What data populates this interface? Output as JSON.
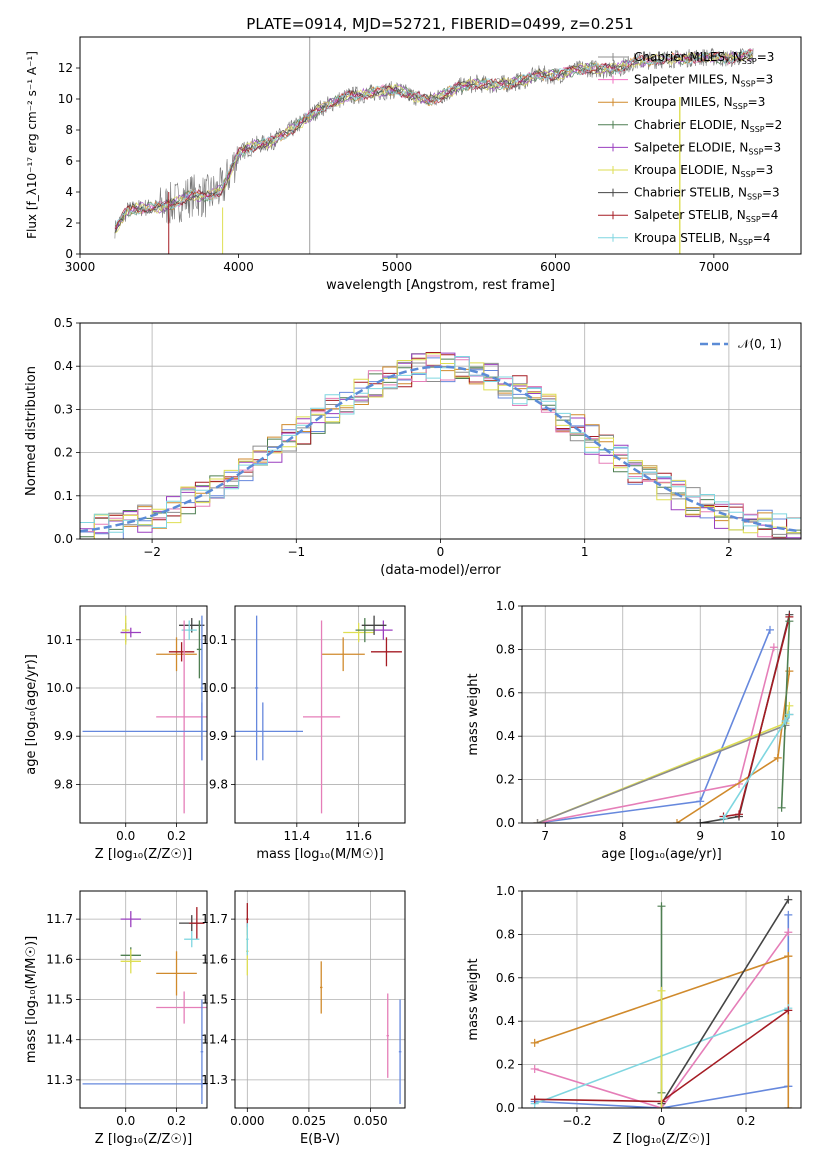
{
  "figure": {
    "title": "PLATE=0914, MJD=52721, FIBERID=0499, z=0.251"
  },
  "legend_series": [
    {
      "name": "Chabrier MILES, N_SSP=3",
      "color": "#8c8c8c"
    },
    {
      "name": "Salpeter MILES, N_SSP=3",
      "color": "#f26fc2"
    },
    {
      "name": "Kroupa MILES, N_SSP=3",
      "color": "#d08a2c"
    },
    {
      "name": "Chabrier ELODIE, N_SSP=2",
      "color": "#4f7f52"
    },
    {
      "name": "Salpeter ELODIE, N_SSP=3",
      "color": "#9a3fbf"
    },
    {
      "name": "Kroupa ELODIE, N_SSP=3",
      "color": "#dede52"
    },
    {
      "name": "Chabrier STELIB, N_SSP=3",
      "color": "#444444"
    },
    {
      "name": "Salpeter STELIB, N_SSP=4",
      "color": "#a51c24"
    },
    {
      "name": "Kroupa STELIB, N_SSP=4",
      "color": "#7fd6e0"
    }
  ],
  "chart_data": [
    {
      "id": "spectrum",
      "type": "line",
      "title": "PLATE=0914, MJD=52721, FIBERID=0499, z=0.251",
      "xlabel": "wavelength [Angstrom, rest frame]",
      "ylabel": "Flux [f_λ10⁻¹⁷ erg cm⁻² s⁻¹ A⁻¹]",
      "xlim": [
        3000,
        7550
      ],
      "ylim": [
        0,
        14
      ],
      "xticks": [
        3000,
        4000,
        5000,
        6000,
        7000
      ],
      "yticks": [
        0,
        2,
        4,
        6,
        8,
        10,
        12
      ],
      "grid": false,
      "legend": "upper right",
      "x": [
        3220,
        3300,
        3400,
        3500,
        3600,
        3700,
        3800,
        3900,
        4000,
        4100,
        4200,
        4300,
        4400,
        4500,
        4600,
        4700,
        4800,
        4900,
        5000,
        5100,
        5200,
        5300,
        5400,
        5500,
        5600,
        5700,
        5800,
        5900,
        6000,
        6100,
        6200,
        6300,
        6400,
        6500,
        6600,
        6700,
        6800,
        6900,
        7000,
        7100,
        7200,
        7300
      ],
      "y": [
        1.6,
        2.8,
        3.0,
        3.0,
        3.3,
        3.8,
        3.7,
        4.2,
        6.5,
        7.0,
        7.2,
        7.8,
        8.5,
        9.3,
        9.8,
        10.2,
        10.3,
        10.5,
        10.6,
        10.2,
        9.9,
        10.3,
        10.8,
        11.0,
        10.9,
        11.0,
        11.2,
        11.6,
        11.5,
        11.8,
        12.0,
        11.9,
        12.0,
        12.4,
        12.5,
        12.6,
        12.6,
        12.7,
        12.7,
        12.6,
        12.8,
        12.9
      ],
      "vlines": [
        4450
      ]
    },
    {
      "id": "residuals",
      "type": "line",
      "xlabel": "(data-model)/error",
      "ylabel": "Normed distribution",
      "xlim": [
        -2.5,
        2.5
      ],
      "ylim": [
        0,
        0.5
      ],
      "xticks": [
        -2,
        -1,
        0,
        1,
        2
      ],
      "yticks": [
        0.0,
        0.1,
        0.2,
        0.3,
        0.4,
        0.5
      ],
      "grid": true,
      "legend": "upper right",
      "gaussian": {
        "name": "𝒩(0, 1)",
        "mu": 0,
        "sigma": 1
      }
    },
    {
      "id": "age-vs-Z",
      "type": "scatter",
      "xlabel": "Z [log₁₀(Z/Z☉)]",
      "ylabel": "age  [log₁₀(age/yr)]",
      "xlim": [
        -0.18,
        0.32
      ],
      "ylim": [
        9.72,
        10.17
      ],
      "xticks": [
        0.0,
        0.2
      ],
      "yticks": [
        9.8,
        9.9,
        10.0,
        10.1
      ],
      "grid": true,
      "points": [
        {
          "x": 0.0,
          "y": 10.115,
          "xerr": 0.02,
          "yerr": 0.02,
          "color": "#8c8c8c"
        },
        {
          "x": 0.0,
          "y": 10.12,
          "xerr": 0.015,
          "yerr": 0.03,
          "color": "#dede52"
        },
        {
          "x": 0.02,
          "y": 10.115,
          "xerr": 0.04,
          "yerr": 0.01,
          "color": "#9a3fbf"
        },
        {
          "x": 0.2,
          "y": 10.07,
          "xerr": 0.08,
          "yerr": 0.035,
          "color": "#d08a2c"
        },
        {
          "x": 0.22,
          "y": 10.075,
          "xerr": 0.05,
          "yerr": 0.02,
          "color": "#a51c24"
        },
        {
          "x": 0.26,
          "y": 10.13,
          "xerr": 0.05,
          "yerr": 0.015,
          "color": "#444444"
        },
        {
          "x": 0.25,
          "y": 10.12,
          "xerr": 0.03,
          "yerr": 0.02,
          "color": "#7fd6e0"
        },
        {
          "x": 0.23,
          "y": 9.94,
          "xerr": 0.11,
          "yerr": 0.2,
          "color": "#e57eb8"
        },
        {
          "x": 0.29,
          "y": 10.08,
          "xerr": 0.01,
          "yerr": 0.06,
          "color": "#4f7f52"
        },
        {
          "x": 0.3,
          "y": 9.91,
          "xerr": 0.47,
          "yerr": 0.06,
          "color": "#6688dd"
        },
        {
          "x": 0.3,
          "y": 10.0,
          "xerr": 0.005,
          "yerr": 0.15,
          "color": "#6688dd"
        }
      ]
    },
    {
      "id": "age-vs-mass",
      "type": "scatter",
      "xlabel": "mass [log₁₀(M/M☉)]",
      "xlim": [
        11.2,
        11.75
      ],
      "ylim": [
        9.72,
        10.17
      ],
      "xticks": [
        11.4,
        11.6
      ],
      "yticks": [
        9.8,
        9.9,
        10.0,
        10.1
      ],
      "grid": true,
      "points": [
        {
          "x": 11.55,
          "y": 10.07,
          "xerr": 0.07,
          "yerr": 0.035,
          "color": "#d08a2c"
        },
        {
          "x": 11.6,
          "y": 10.115,
          "xerr": 0.05,
          "yerr": 0.02,
          "color": "#dede52"
        },
        {
          "x": 11.62,
          "y": 10.12,
          "xerr": 0.03,
          "yerr": 0.025,
          "color": "#4f7f52"
        },
        {
          "x": 11.68,
          "y": 10.12,
          "xerr": 0.03,
          "yerr": 0.02,
          "color": "#9a3fbf"
        },
        {
          "x": 11.65,
          "y": 10.13,
          "xerr": 0.04,
          "yerr": 0.02,
          "color": "#444444"
        },
        {
          "x": 11.69,
          "y": 10.075,
          "xerr": 0.05,
          "yerr": 0.03,
          "color": "#a51c24"
        },
        {
          "x": 11.48,
          "y": 9.94,
          "xerr": 0.06,
          "yerr": 0.2,
          "color": "#e57eb8"
        },
        {
          "x": 11.29,
          "y": 9.91,
          "xerr": 0.13,
          "yerr": 0.06,
          "color": "#6688dd"
        },
        {
          "x": 11.27,
          "y": 10.0,
          "xerr": 0.005,
          "yerr": 0.15,
          "color": "#6688dd"
        }
      ]
    },
    {
      "id": "mass-weight-vs-age",
      "type": "line",
      "xlabel": "age  [log₁₀(age/yr)]",
      "ylabel": "mass weight",
      "xlim": [
        6.7,
        10.3
      ],
      "ylim": [
        0,
        1
      ],
      "xticks": [
        7,
        8,
        9,
        10
      ],
      "yticks": [
        0.0,
        0.2,
        0.4,
        0.6,
        0.8,
        1.0
      ],
      "grid": true,
      "series": [
        {
          "color": "#6688dd",
          "x": [
            6.9,
            9.0,
            9.9
          ],
          "y": [
            0.0,
            0.1,
            0.89
          ]
        },
        {
          "color": "#e57eb8",
          "x": [
            6.9,
            9.5,
            9.95
          ],
          "y": [
            0.0,
            0.18,
            0.81
          ]
        },
        {
          "color": "#d08a2c",
          "x": [
            8.7,
            10.0,
            10.15
          ],
          "y": [
            0.0,
            0.3,
            0.7
          ]
        },
        {
          "color": "#dede52",
          "x": [
            6.9,
            10.1,
            10.15
          ],
          "y": [
            0.0,
            0.46,
            0.54
          ]
        },
        {
          "color": "#8c8c8c",
          "x": [
            6.9,
            10.1,
            10.15
          ],
          "y": [
            0.0,
            0.45,
            0.5
          ]
        },
        {
          "color": "#444444",
          "x": [
            9.0,
            9.5,
            10.15
          ],
          "y": [
            0.0,
            0.03,
            0.96
          ]
        },
        {
          "color": "#a51c24",
          "x": [
            9.3,
            9.5,
            10.15
          ],
          "y": [
            0.03,
            0.04,
            0.95
          ]
        },
        {
          "color": "#4f7f52",
          "x": [
            10.05,
            10.15
          ],
          "y": [
            0.07,
            0.93
          ]
        },
        {
          "color": "#7fd6e0",
          "x": [
            9.3,
            10.1,
            10.15
          ],
          "y": [
            0.02,
            0.47,
            0.5
          ]
        }
      ]
    },
    {
      "id": "mass-vs-Z",
      "type": "scatter",
      "xlabel": "Z [log₁₀(Z/Z☉)]",
      "ylabel": "mass [log₁₀(M/M☉)]",
      "xlim": [
        -0.18,
        0.32
      ],
      "ylim": [
        11.23,
        11.77
      ],
      "xticks": [
        0.0,
        0.2
      ],
      "yticks": [
        11.3,
        11.4,
        11.5,
        11.6,
        11.7
      ],
      "grid": true,
      "points": [
        {
          "x": 0.02,
          "y": 11.7,
          "xerr": 0.04,
          "yerr": 0.02,
          "color": "#9a3fbf"
        },
        {
          "x": 0.02,
          "y": 11.61,
          "xerr": 0.04,
          "yerr": 0.02,
          "color": "#4f7f52"
        },
        {
          "x": 0.02,
          "y": 11.595,
          "xerr": 0.04,
          "yerr": 0.03,
          "color": "#dede52"
        },
        {
          "x": 0.26,
          "y": 11.69,
          "xerr": 0.05,
          "yerr": 0.02,
          "color": "#444444"
        },
        {
          "x": 0.28,
          "y": 11.69,
          "xerr": 0.03,
          "yerr": 0.04,
          "color": "#a51c24"
        },
        {
          "x": 0.26,
          "y": 11.65,
          "xerr": 0.03,
          "yerr": 0.02,
          "color": "#7fd6e0"
        },
        {
          "x": 0.2,
          "y": 11.565,
          "xerr": 0.08,
          "yerr": 0.055,
          "color": "#d08a2c"
        },
        {
          "x": 0.23,
          "y": 11.48,
          "xerr": 0.11,
          "yerr": 0.04,
          "color": "#e57eb8"
        },
        {
          "x": 0.3,
          "y": 11.29,
          "xerr": 0.47,
          "yerr": 0.01,
          "color": "#6688dd"
        },
        {
          "x": 0.3,
          "y": 11.37,
          "xerr": 0.005,
          "yerr": 0.13,
          "color": "#6688dd"
        }
      ]
    },
    {
      "id": "mass-vs-EBV",
      "type": "scatter",
      "xlabel": "E(B-V)",
      "xlim": [
        -0.005,
        0.064
      ],
      "ylim": [
        11.23,
        11.77
      ],
      "xticks": [
        0.0,
        0.025,
        0.05
      ],
      "xticklabels": [
        "0.000",
        "0.025",
        "0.050"
      ],
      "yticks": [
        11.3,
        11.4,
        11.5,
        11.6,
        11.7
      ],
      "grid": true,
      "points": [
        {
          "x": 0.0,
          "y": 11.7,
          "xerr": 0.0005,
          "yerr": 0.04,
          "color": "#a51c24"
        },
        {
          "x": 0.0,
          "y": 11.62,
          "xerr": 0.0005,
          "yerr": 0.06,
          "color": "#dede52"
        },
        {
          "x": 0.0,
          "y": 11.65,
          "xerr": 0.0005,
          "yerr": 0.04,
          "color": "#7fd6e0"
        },
        {
          "x": 0.03,
          "y": 11.53,
          "xerr": 0.0005,
          "yerr": 0.065,
          "color": "#d08a2c"
        },
        {
          "x": 0.057,
          "y": 11.41,
          "xerr": 0.0005,
          "yerr": 0.105,
          "color": "#e57eb8"
        },
        {
          "x": 0.062,
          "y": 11.37,
          "xerr": 0.0005,
          "yerr": 0.13,
          "color": "#6688dd"
        }
      ]
    },
    {
      "id": "mass-weight-vs-Z",
      "type": "line",
      "xlabel": "Z [log₁₀(Z/Z☉)]",
      "ylabel": "mass weight",
      "xlim": [
        -0.33,
        0.33
      ],
      "ylim": [
        0,
        1
      ],
      "xticks": [
        -0.2,
        0.0,
        0.2
      ],
      "yticks": [
        0.0,
        0.2,
        0.4,
        0.6,
        0.8,
        1.0
      ],
      "grid": true,
      "series": [
        {
          "color": "#6688dd",
          "x": [
            -0.3,
            0.0,
            0.3
          ],
          "y": [
            0.03,
            0.0,
            0.1
          ]
        },
        {
          "color": "#6688dd",
          "x": [
            0.3,
            0.3
          ],
          "y": [
            0.1,
            0.89
          ]
        },
        {
          "color": "#e57eb8",
          "x": [
            -0.3,
            0.0,
            0.3
          ],
          "y": [
            0.18,
            0.0,
            0.81
          ]
        },
        {
          "color": "#d08a2c",
          "x": [
            -0.3,
            0.3
          ],
          "y": [
            0.3,
            0.7
          ]
        },
        {
          "color": "#d08a2c",
          "x": [
            0.3,
            0.3
          ],
          "y": [
            0.0,
            0.7
          ]
        },
        {
          "color": "#7fd6e0",
          "x": [
            -0.3,
            0.3
          ],
          "y": [
            0.02,
            0.46
          ]
        },
        {
          "color": "#444444",
          "x": [
            0.0,
            0.3
          ],
          "y": [
            0.02,
            0.96
          ]
        },
        {
          "color": "#a51c24",
          "x": [
            -0.3,
            0.0,
            0.3
          ],
          "y": [
            0.04,
            0.03,
            0.45
          ]
        },
        {
          "color": "#4f7f52",
          "x": [
            0.0,
            0.0
          ],
          "y": [
            0.07,
            0.93
          ]
        },
        {
          "color": "#dede52",
          "x": [
            0.0,
            0.0
          ],
          "y": [
            0.0,
            0.54
          ]
        }
      ]
    }
  ]
}
